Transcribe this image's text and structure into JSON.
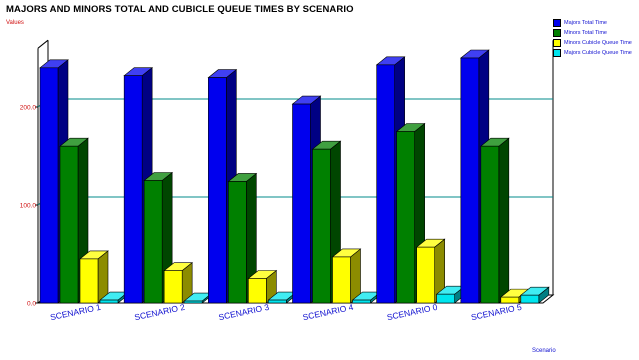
{
  "chart_data": {
    "type": "bar",
    "title": "MAJORS AND MINORS TOTAL AND CUBICLE QUEUE TIMES BY SCENARIO",
    "xlabel": "Scenario",
    "ylabel": "Values",
    "ylim": [
      0,
      260
    ],
    "yticks": [
      "0.0",
      "100.0",
      "200.0"
    ],
    "grid": true,
    "legend_position": "top-right",
    "categories": [
      "SCENARIO 1",
      "SCENARIO 2",
      "SCENARIO 3",
      "SCENARIO 4",
      "SCENARIO 0",
      "SCENARIO 5"
    ],
    "series": [
      {
        "name": "Majors Total Time",
        "color": "#0000ee",
        "values": [
          240,
          232,
          230,
          203,
          243,
          250
        ]
      },
      {
        "name": "Minors Total Time",
        "color": "#008000",
        "values": [
          160,
          125,
          124,
          157,
          175,
          160
        ]
      },
      {
        "name": "Minors Cubicle Queue Time",
        "color": "#ffff00",
        "values": [
          45,
          33,
          25,
          47,
          57,
          6
        ]
      },
      {
        "name": "Majors Cubicle Queue Time",
        "color": "#00e5ee",
        "values": [
          3,
          2,
          3,
          3,
          9,
          8
        ]
      }
    ]
  }
}
